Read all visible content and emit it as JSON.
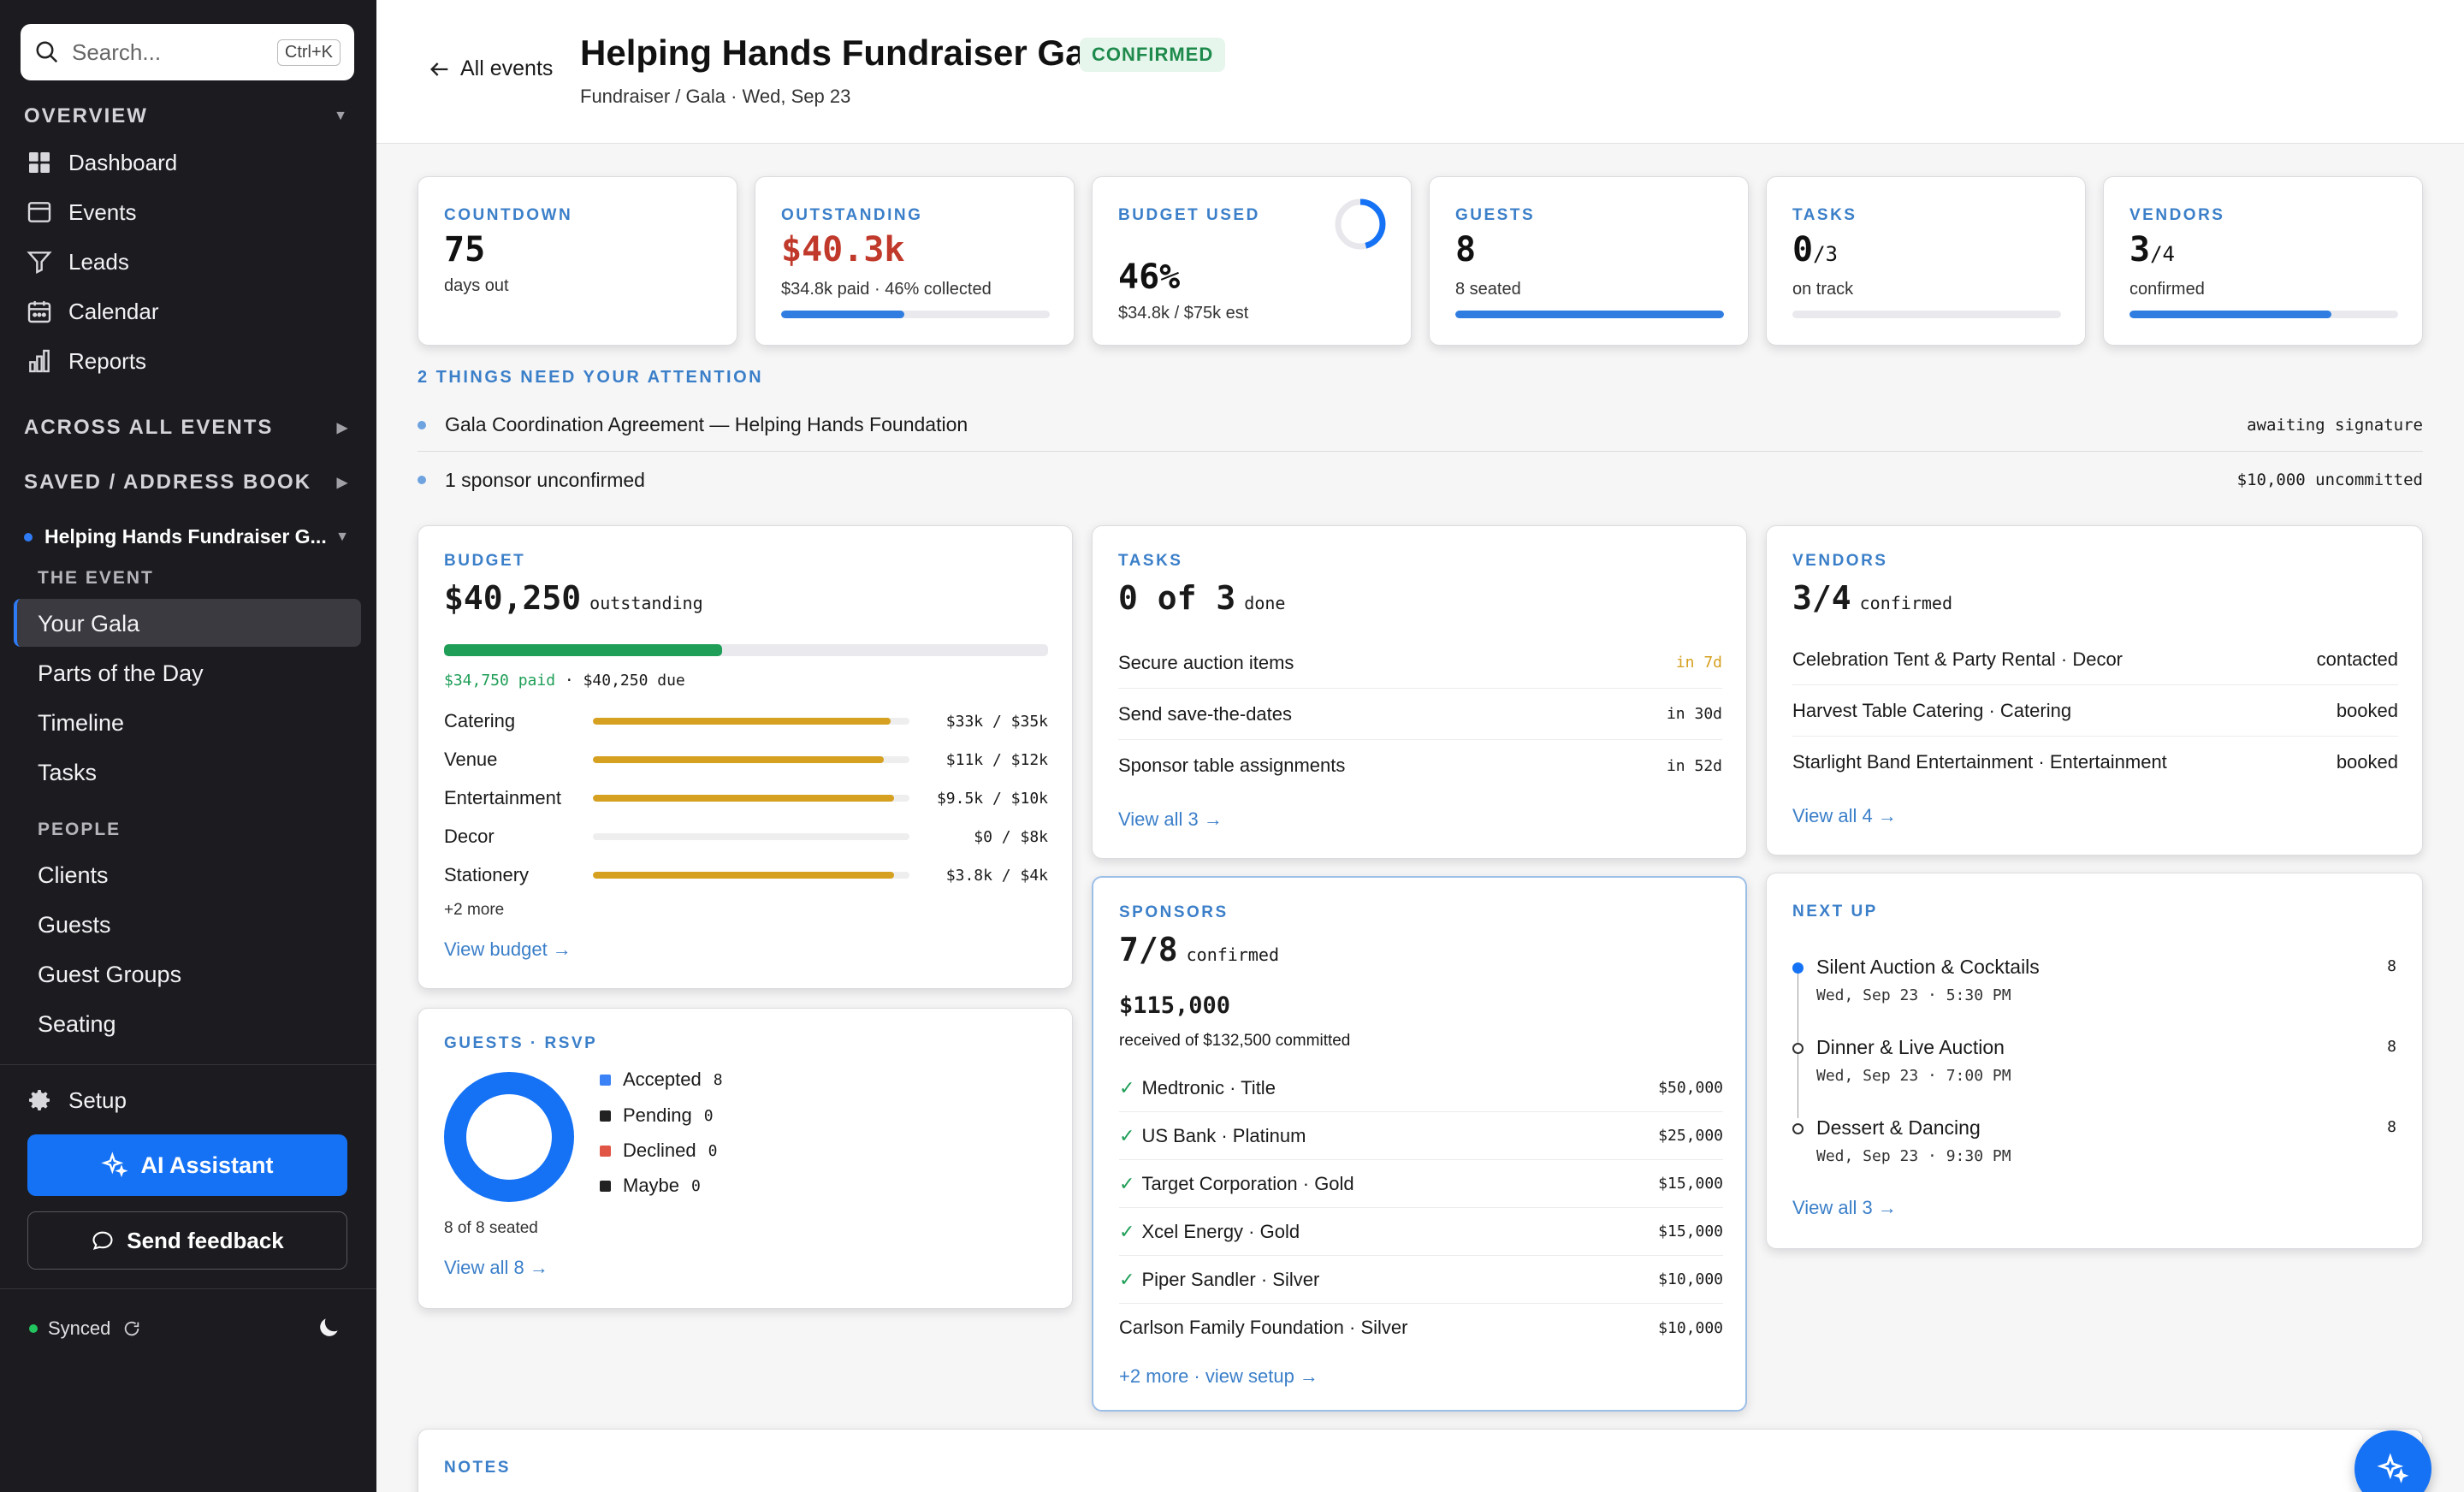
{
  "sidebar": {
    "search_placeholder": "Search...",
    "search_shortcut": "Ctrl+K",
    "overview_label": "OVERVIEW",
    "overview_items": [
      {
        "label": "Dashboard",
        "icon": "dashboard-icon"
      },
      {
        "label": "Events",
        "icon": "events-icon"
      },
      {
        "label": "Leads",
        "icon": "funnel-icon"
      },
      {
        "label": "Calendar",
        "icon": "calendar-icon"
      },
      {
        "label": "Reports",
        "icon": "bar-chart-icon"
      }
    ],
    "across_label": "ACROSS ALL EVENTS",
    "saved_label": "SAVED / ADDRESS BOOK",
    "current_event": "Helping Hands Fundraiser G...",
    "the_event_label": "THE EVENT",
    "event_items": [
      "Your Gala",
      "Parts of the Day",
      "Timeline",
      "Tasks"
    ],
    "people_label": "PEOPLE",
    "people_items": [
      "Clients",
      "Guests",
      "Guest Groups",
      "Seating"
    ],
    "setup_label": "Setup",
    "ai_label": "AI Assistant",
    "feedback_label": "Send feedback",
    "synced_label": "Synced"
  },
  "header": {
    "back_label": "All events",
    "title": "Helping Hands Fundraiser Gala",
    "status": "CONFIRMED",
    "subtitle": "Fundraiser / Gala · Wed, Sep 23"
  },
  "stats": {
    "countdown": {
      "label": "COUNTDOWN",
      "value": "75",
      "sub": "days out"
    },
    "outstanding": {
      "label": "OUTSTANDING",
      "value": "$40.3k",
      "sub": "$34.8k paid · 46% collected",
      "progress": 0.46
    },
    "budget": {
      "label": "BUDGET USED",
      "value": "46%",
      "sub": "$34.8k / $75k est",
      "progress": 0.46
    },
    "guests": {
      "label": "GUESTS",
      "value": "8",
      "sub": "8 seated",
      "progress": 1.0
    },
    "tasks": {
      "label": "TASKS",
      "value": "0",
      "total": "/3",
      "sub": "on track",
      "progress": 0.0
    },
    "vendors": {
      "label": "VENDORS",
      "value": "3",
      "total": "/4",
      "sub": "confirmed",
      "progress": 0.75
    }
  },
  "attention": {
    "heading": "2 THINGS NEED YOUR ATTENTION",
    "items": [
      {
        "text": "Gala Coordination Agreement — Helping Hands Foundation",
        "status": "awaiting signature"
      },
      {
        "text": "1 sponsor unconfirmed",
        "status": "$10,000 uncommitted"
      }
    ]
  },
  "budget_card": {
    "label": "BUDGET",
    "amount": "$40,250",
    "amount_suffix": "outstanding",
    "paid_fraction": 0.46,
    "paid": "$34,750 paid",
    "due": "$40,250 due",
    "rows": [
      {
        "name": "Catering",
        "amount": "$33k / $35k",
        "fraction": 0.94
      },
      {
        "name": "Venue",
        "amount": "$11k / $12k",
        "fraction": 0.92
      },
      {
        "name": "Entertainment",
        "amount": "$9.5k / $10k",
        "fraction": 0.95
      },
      {
        "name": "Decor",
        "amount": "$0 / $8k",
        "fraction": 0.0
      },
      {
        "name": "Stationery",
        "amount": "$3.8k / $4k",
        "fraction": 0.95
      }
    ],
    "more": "+2 more",
    "link": "View budget →"
  },
  "tasks_card": {
    "label": "TASKS",
    "count": "0 of 3",
    "suffix": "done",
    "rows": [
      {
        "name": "Secure auction items",
        "due": "in 7d",
        "urgent": true
      },
      {
        "name": "Send save-the-dates",
        "due": "in 30d",
        "urgent": false
      },
      {
        "name": "Sponsor table assignments",
        "due": "in 52d",
        "urgent": false
      }
    ],
    "link": "View all 3 →"
  },
  "vendors_card": {
    "label": "VENDORS",
    "count": "3/4",
    "suffix": "confirmed",
    "rows": [
      {
        "name": "Celebration Tent & Party Rental · Decor",
        "status": "contacted"
      },
      {
        "name": "Harvest Table Catering · Catering",
        "status": "booked"
      },
      {
        "name": "Starlight Band Entertainment · Entertainment",
        "status": "booked"
      }
    ],
    "link": "View all 4 →"
  },
  "guests_card": {
    "label": "GUESTS · RSVP",
    "legend": [
      {
        "name": "Accepted",
        "value": "8",
        "color": "#3b82f6"
      },
      {
        "name": "Pending",
        "value": "0",
        "color": "#222222"
      },
      {
        "name": "Declined",
        "value": "0",
        "color": "#e05545"
      },
      {
        "name": "Maybe",
        "value": "0",
        "color": "#222222"
      }
    ],
    "seated": "8 of 8 seated",
    "link": "View all 8 →"
  },
  "sponsors_card": {
    "label": "SPONSORS",
    "count": "7/8",
    "suffix": "confirmed",
    "total": "$115,000",
    "received": "received of $132,500 committed",
    "rows": [
      {
        "name": "Medtronic · Title",
        "amount": "$50,000",
        "confirmed": true
      },
      {
        "name": "US Bank · Platinum",
        "amount": "$25,000",
        "confirmed": true
      },
      {
        "name": "Target Corporation · Gold",
        "amount": "$15,000",
        "confirmed": true
      },
      {
        "name": "Xcel Energy · Gold",
        "amount": "$15,000",
        "confirmed": true
      },
      {
        "name": "Piper Sandler · Silver",
        "amount": "$10,000",
        "confirmed": true
      },
      {
        "name": "Carlson Family Foundation · Silver",
        "amount": "$10,000",
        "confirmed": false
      }
    ],
    "check": "✓",
    "link": "+2 more · view setup →"
  },
  "next_up_card": {
    "label": "NEXT UP",
    "items": [
      {
        "title": "Silent Auction & Cocktails",
        "time": "Wed, Sep 23 · 5:30 PM",
        "count": "8"
      },
      {
        "title": "Dinner & Live Auction",
        "time": "Wed, Sep 23 · 7:00 PM",
        "count": "8"
      },
      {
        "title": "Dessert & Dancing",
        "time": "Wed, Sep 23 · 9:30 PM",
        "count": "8"
      }
    ],
    "link": "View all 3 →"
  },
  "notes_card": {
    "label": "NOTES"
  },
  "colors": {
    "accent": "#1572f5",
    "label_blue": "#3b7fc9",
    "danger": "#c0392b",
    "success": "#1e9e57",
    "warning": "#d6a020",
    "sidebar_bg": "#1c1c20"
  }
}
